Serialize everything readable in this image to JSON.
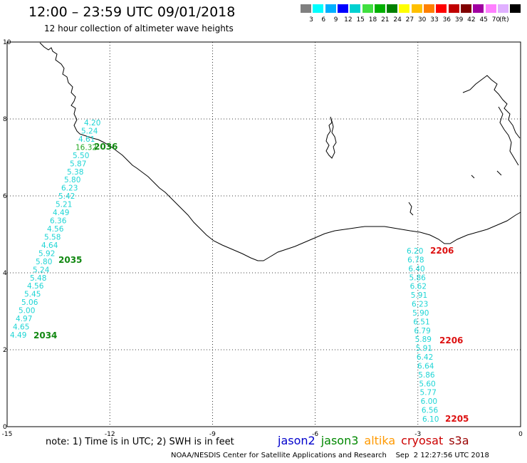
{
  "header": {
    "title": "12:00 – 23:59 UTC 09/01/2018",
    "subtitle": "12 hour collection of altimeter wave heights"
  },
  "colorbar": {
    "unit": "(ft)",
    "ticks": [
      "3",
      "6",
      "9",
      "12",
      "15",
      "18",
      "21",
      "24",
      "27",
      "30",
      "33",
      "36",
      "39",
      "42",
      "45",
      "70"
    ],
    "colors": [
      "#808080",
      "#00ffff",
      "#00b0ff",
      "#0000ff",
      "#00d0d0",
      "#40e040",
      "#00b000",
      "#008000",
      "#ffff00",
      "#ffc000",
      "#ff8000",
      "#ff0000",
      "#c00000",
      "#800000",
      "#a000a0",
      "#ff80ff",
      "#e0b0ff",
      "#000000"
    ]
  },
  "axes": {
    "x_ticks": [
      "-15",
      "-12",
      "-9",
      "-6",
      "-3",
      "0"
    ],
    "y_ticks": [
      "0",
      "2",
      "4",
      "6",
      "8",
      "10"
    ],
    "xlim": [
      -15,
      0
    ],
    "ylim": [
      0,
      10
    ]
  },
  "tracks": {
    "west": {
      "values": [
        "4.20",
        "5.24",
        "4.61",
        "16.32",
        "5.50",
        "5.87",
        "5.38",
        "5.80",
        "6.23",
        "5.42",
        "5.21",
        "4.49",
        "6.36",
        "4.56",
        "5.58",
        "4.64",
        "5.92",
        "5.80",
        "5.24",
        "5.48",
        "4.56",
        "5.45",
        "5.06",
        "5.00",
        "4.97",
        "4.65",
        "4.49"
      ],
      "highlight_value": "16.32",
      "times": [
        "2036",
        "2035",
        "2034"
      ]
    },
    "east": {
      "values": [
        "6.20",
        "6.78",
        "6.40",
        "5.86",
        "6.62",
        "5.91",
        "6.23",
        "5.90",
        "6.51",
        "6.79",
        "5.89",
        "5.91",
        "6.42",
        "6.64",
        "5.86",
        "5.60",
        "5.77",
        "6.00",
        "6.56",
        "6.10"
      ],
      "times": [
        "2206",
        "2206",
        "2205"
      ]
    }
  },
  "footer": {
    "note": "note:  1) Time is in UTC;  2) SWH is in feet",
    "legend": [
      {
        "name": "jason2",
        "color": "#0000cc"
      },
      {
        "name": "jason3",
        "color": "#008800"
      },
      {
        "name": "altika",
        "color": "#ff9900"
      },
      {
        "name": "cryosat",
        "color": "#cc0000"
      },
      {
        "name": "s3a",
        "color": "#990000"
      }
    ],
    "credit": "NOAA/NESDIS Center for Satellite Applications and Research    Sep  2 12:27:56 UTC 2018"
  }
}
